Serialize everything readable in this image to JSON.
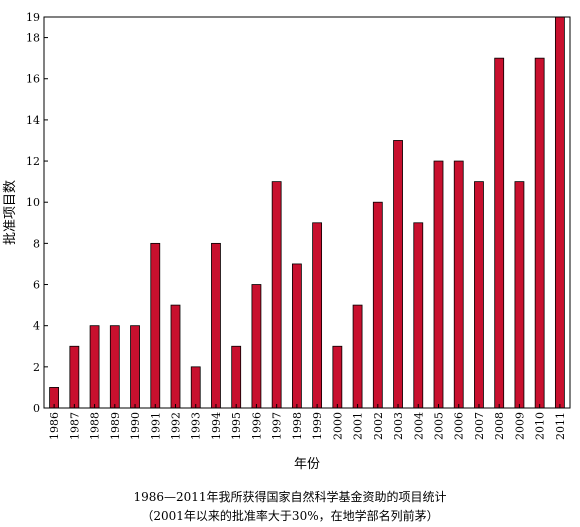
{
  "chart_data": {
    "type": "bar",
    "categories": [
      "1986",
      "1987",
      "1988",
      "1989",
      "1990",
      "1991",
      "1992",
      "1993",
      "1994",
      "1995",
      "1996",
      "1997",
      "1998",
      "1999",
      "2000",
      "2001",
      "2002",
      "2003",
      "2004",
      "2005",
      "2006",
      "2007",
      "2008",
      "2009",
      "2010",
      "2011"
    ],
    "values": [
      1,
      3,
      4,
      4,
      4,
      8,
      5,
      2,
      8,
      3,
      6,
      11,
      7,
      9,
      3,
      5,
      10,
      13,
      9,
      12,
      12,
      11,
      17,
      11,
      17,
      19
    ],
    "xlabel": "年份",
    "ylabel": "批准项目数",
    "ylim": [
      0,
      19
    ],
    "yticks": [
      0,
      2,
      4,
      6,
      8,
      10,
      12,
      14,
      16,
      18,
      19
    ],
    "bar_color": "#c8102e",
    "grid": false,
    "legend": "none"
  },
  "caption": {
    "line1": "1986—2011年我所获得国家自然科学基金资助的项目统计",
    "line2": "（2001年以来的批准率大于30%，在地学部名列前茅）"
  }
}
